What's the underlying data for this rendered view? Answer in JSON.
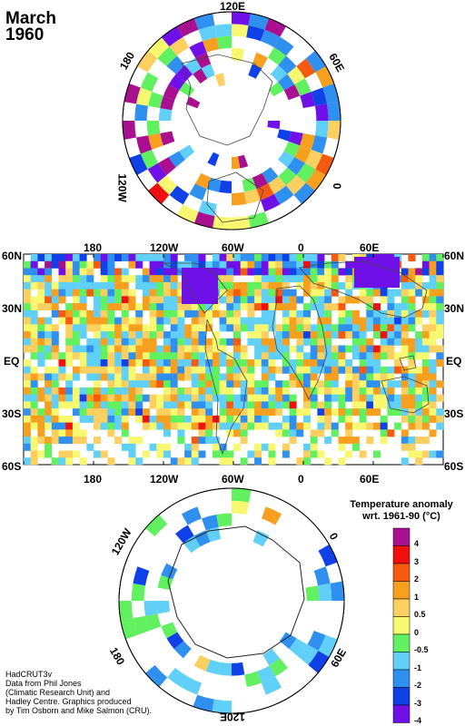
{
  "header": {
    "month": "March",
    "year": "1960"
  },
  "north_polar": {
    "labels": {
      "top": "120E",
      "upper_left": "180",
      "upper_right": "60E",
      "left": "120W",
      "right": "0"
    }
  },
  "world_map": {
    "top_labels": [
      "180",
      "120W",
      "60W",
      "0",
      "60E"
    ],
    "bottom_labels": [
      "180",
      "120W",
      "60W",
      "0",
      "60E"
    ],
    "lat_labels": [
      "60N",
      "30N",
      "EQ",
      "30S",
      "60S"
    ]
  },
  "south_polar": {
    "labels": {
      "upper_left": "120W",
      "upper_right": "0",
      "lower_left": "180",
      "lower_right": "60E",
      "bottom": "120E"
    }
  },
  "legend": {
    "title_line1": "Temperature anomaly",
    "title_line2": "wrt. 1961-90  (°C)",
    "items": [
      {
        "label": "4",
        "color": "#a8108f"
      },
      {
        "label": "3",
        "color": "#f01010"
      },
      {
        "label": "2",
        "color": "#f55a10"
      },
      {
        "label": "1",
        "color": "#f7a020"
      },
      {
        "label": "0.5",
        "color": "#fbd060"
      },
      {
        "label": "0",
        "color": "#f8f870"
      },
      {
        "label": "-0.5",
        "color": "#60f060"
      },
      {
        "label": "-1",
        "color": "#60d0f8"
      },
      {
        "label": "-2",
        "color": "#3090f0"
      },
      {
        "label": "-3",
        "color": "#1040e8"
      },
      {
        "label": "-4",
        "color": "#7010e8"
      }
    ]
  },
  "credit": [
    "HadCRUT3v",
    "Data from Phil Jones",
    "(Climatic Research Unit) and",
    "Hadley Centre.  Graphics produced",
    "by Tim Osborn and Mike Salmon (CRU)."
  ]
}
